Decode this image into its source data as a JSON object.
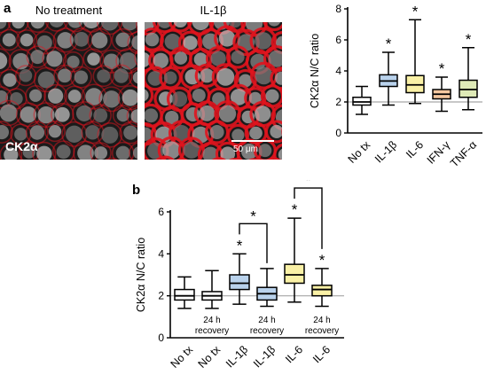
{
  "panel_a": {
    "letter": "a",
    "images": [
      {
        "title": "No treatment",
        "stain_label": "CK2α"
      },
      {
        "title": "IL-1β",
        "scalebar_label": "50 μm"
      }
    ]
  },
  "panel_b": {
    "letter": "b"
  },
  "colors": {
    "no_tx": "#ffffff",
    "il1b": "#b9d2ec",
    "il6": "#faf1a6",
    "ifng": "#f6c8a0",
    "tnfa": "#dfeab7",
    "refline": "#a6a6a6",
    "membrane": "#e0141e"
  },
  "chart_data": [
    {
      "type": "boxplot",
      "panel": "a",
      "ylabel": "CK2α N/C ratio",
      "ylim": [
        0,
        8
      ],
      "yticks": [
        0,
        2,
        4,
        6,
        8
      ],
      "reference_line": 2,
      "categories": [
        "No tx",
        "IL-1β",
        "IL-6",
        "IFN-γ",
        "TNF-α"
      ],
      "boxes": [
        {
          "min": 1.2,
          "q1": 1.8,
          "median": 2.0,
          "q3": 2.3,
          "max": 3.0,
          "color": "#ffffff",
          "star": ""
        },
        {
          "min": 1.8,
          "q1": 3.0,
          "median": 3.35,
          "q3": 3.75,
          "max": 5.2,
          "color": "#b9d2ec",
          "star": "*"
        },
        {
          "min": 1.9,
          "q1": 2.6,
          "median": 3.1,
          "q3": 3.7,
          "max": 7.3,
          "color": "#faf1a6",
          "star": "*"
        },
        {
          "min": 1.4,
          "q1": 2.2,
          "median": 2.5,
          "q3": 2.8,
          "max": 3.6,
          "color": "#f6c8a0",
          "star": "*"
        },
        {
          "min": 1.5,
          "q1": 2.3,
          "median": 2.8,
          "q3": 3.4,
          "max": 5.5,
          "color": "#dfeab7",
          "star": "*"
        }
      ]
    },
    {
      "type": "boxplot",
      "panel": "b",
      "ylabel": "CK2α N/C ratio",
      "ylim": [
        0,
        6
      ],
      "yticks": [
        0,
        2,
        4,
        6
      ],
      "reference_line": 2,
      "categories": [
        "No tx",
        "No tx",
        "IL-1β",
        "IL-1β",
        "IL-6",
        "IL-6"
      ],
      "recovery_label": [
        "24 h",
        "recovery"
      ],
      "recovery_groups": [
        1,
        3,
        5
      ],
      "boxes": [
        {
          "min": 1.4,
          "q1": 1.8,
          "median": 2.0,
          "q3": 2.3,
          "max": 2.9,
          "color": "#ffffff",
          "star": ""
        },
        {
          "min": 1.4,
          "q1": 1.8,
          "median": 2.0,
          "q3": 2.2,
          "max": 3.2,
          "color": "#ffffff",
          "star": ""
        },
        {
          "min": 1.6,
          "q1": 2.3,
          "median": 2.6,
          "q3": 3.0,
          "max": 4.0,
          "color": "#b9d2ec",
          "star": "*"
        },
        {
          "min": 1.5,
          "q1": 1.8,
          "median": 2.1,
          "q3": 2.4,
          "max": 3.3,
          "color": "#b9d2ec",
          "star": ""
        },
        {
          "min": 1.7,
          "q1": 2.6,
          "median": 3.0,
          "q3": 3.5,
          "max": 5.7,
          "color": "#faf1a6",
          "star": "*"
        },
        {
          "min": 1.5,
          "q1": 2.0,
          "median": 2.3,
          "q3": 2.5,
          "max": 3.3,
          "color": "#faf1a6",
          "star": "*"
        }
      ],
      "comparisons": [
        {
          "from": 2,
          "to": 3,
          "star": "*"
        },
        {
          "from": 4,
          "to": 5,
          "star": "*"
        }
      ]
    }
  ]
}
